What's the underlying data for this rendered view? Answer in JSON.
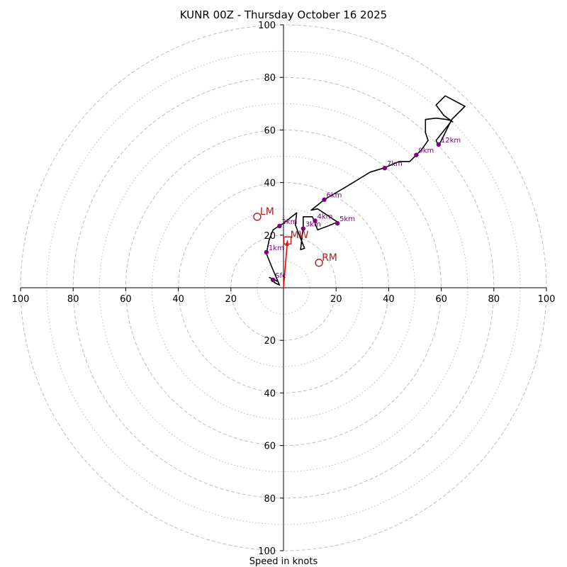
{
  "chart_data": {
    "type": "hodograph",
    "title": "KUNR 00Z - Thursday October 16 2025",
    "xlabel": "Speed in knots",
    "range": 100,
    "axis_ticks": [
      20,
      40,
      60,
      80,
      100
    ],
    "tick_labels": {
      "x_left": [
        "100",
        "80",
        "60",
        "40",
        "20"
      ],
      "x_right": [
        "20",
        "40",
        "60",
        "80",
        "100"
      ],
      "y_top": [
        "20",
        "40",
        "60",
        "80",
        "100"
      ],
      "y_bottom": [
        "20",
        "40",
        "60",
        "80",
        "100"
      ]
    },
    "rings_major": [
      20,
      40,
      60,
      80,
      100
    ],
    "rings_minor": [
      10,
      30,
      50,
      70,
      90
    ],
    "hodograph_line": [
      [
        -5.5,
        4.0
      ],
      [
        -2.5,
        2.5
      ],
      [
        -4.0,
        3.5
      ],
      [
        -3.5,
        2.0
      ],
      [
        -1.5,
        1.0
      ],
      [
        -4.5,
        8.0
      ],
      [
        -6.5,
        13.0
      ],
      [
        -5.5,
        18.0
      ],
      [
        -4.0,
        22.0
      ],
      [
        -2.5,
        23.0
      ],
      [
        0.0,
        24.5
      ],
      [
        5.0,
        28.5
      ],
      [
        4.5,
        24.0
      ],
      [
        6.0,
        20.0
      ],
      [
        8.0,
        15.0
      ],
      [
        6.5,
        14.5
      ],
      [
        7.5,
        23.0
      ],
      [
        7.5,
        27.0
      ],
      [
        11.0,
        27.0
      ],
      [
        12.0,
        24.5
      ],
      [
        13.0,
        22.0
      ],
      [
        17.0,
        23.5
      ],
      [
        20.5,
        25.0
      ],
      [
        16.0,
        28.0
      ],
      [
        13.0,
        30.0
      ],
      [
        10.5,
        29.5
      ],
      [
        15.5,
        33.5
      ],
      [
        24.0,
        38.5
      ],
      [
        33.0,
        44.0
      ],
      [
        38.0,
        45.5
      ],
      [
        44.0,
        48.0
      ],
      [
        48.0,
        48.0
      ],
      [
        52.5,
        52.5
      ],
      [
        55.0,
        56.0
      ],
      [
        54.0,
        59.0
      ],
      [
        54.0,
        64.0
      ],
      [
        58.0,
        64.5
      ],
      [
        62.0,
        64.0
      ],
      [
        64.0,
        63.5
      ],
      [
        58.0,
        56.0
      ],
      [
        59.0,
        54.0
      ],
      [
        64.0,
        64.0
      ],
      [
        69.0,
        69.0
      ],
      [
        61.5,
        73.0
      ],
      [
        58.0,
        69.5
      ],
      [
        61.0,
        65.5
      ],
      [
        64.5,
        63.0
      ]
    ],
    "height_markers": [
      {
        "label": "Sfc",
        "u": -4,
        "v": 3
      },
      {
        "label": "1km",
        "u": -6.5,
        "v": 13.5
      },
      {
        "label": "2km",
        "u": -1.5,
        "v": 23.5
      },
      {
        "label": "3km",
        "u": 7.5,
        "v": 22.5
      },
      {
        "label": "4km",
        "u": 12,
        "v": 25.5
      },
      {
        "label": "5km",
        "u": 20.5,
        "v": 24.5
      },
      {
        "label": "6km",
        "u": 15.5,
        "v": 33.5
      },
      {
        "label": "7km",
        "u": 38.5,
        "v": 45.5
      },
      {
        "label": "9km",
        "u": 50.5,
        "v": 50.5
      },
      {
        "label": "12km",
        "u": 59,
        "v": 54.5
      }
    ],
    "motion_markers": [
      {
        "label": "LM",
        "u": -10,
        "v": 27,
        "shape": "circle"
      },
      {
        "label": "RM",
        "u": 13.5,
        "v": 9.5,
        "shape": "circle"
      },
      {
        "label": "MW",
        "u": 1.5,
        "v": 18,
        "shape": "square"
      }
    ],
    "mean_wind_vector": {
      "u": 1.5,
      "v": 18
    },
    "colors": {
      "line": "#000000",
      "marker": "#800080",
      "motion": "#b22222",
      "vector": "#ff0000",
      "grid": "#bfbfbf"
    }
  }
}
